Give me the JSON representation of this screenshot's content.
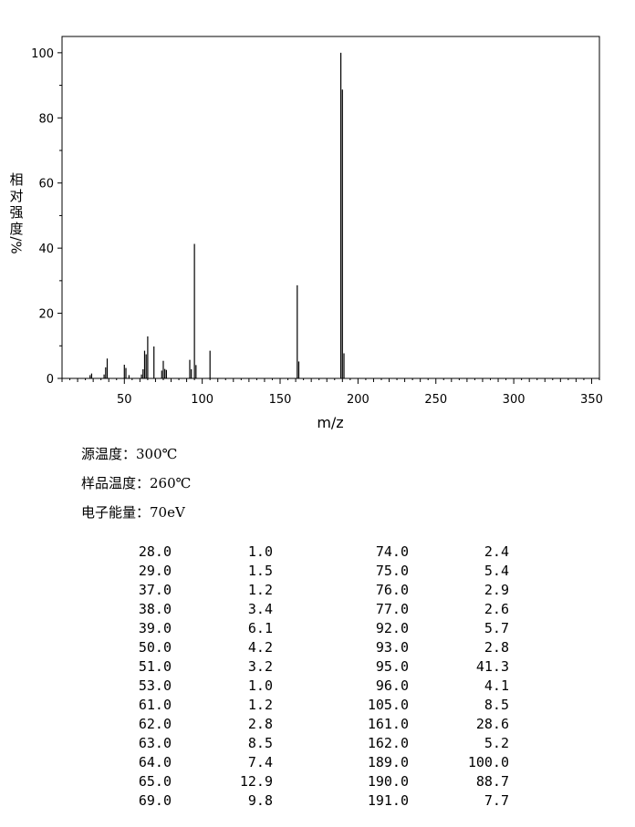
{
  "chart_data": {
    "type": "bar",
    "xlabel": "m/z",
    "ylabel": "相对强度/%",
    "xlim": [
      10,
      355
    ],
    "ylim": [
      0,
      105
    ],
    "x_ticks": [
      50,
      100,
      150,
      200,
      250,
      300,
      350
    ],
    "y_ticks": [
      0,
      20,
      40,
      60,
      80,
      100
    ],
    "grid": false,
    "x": [
      28,
      29,
      37,
      38,
      39,
      50,
      51,
      53,
      61,
      62,
      63,
      64,
      65,
      69,
      74,
      75,
      76,
      77,
      92,
      93,
      95,
      96,
      105,
      161,
      162,
      189,
      190,
      191
    ],
    "values": [
      1.0,
      1.5,
      1.2,
      3.4,
      6.1,
      4.2,
      3.2,
      1.0,
      1.2,
      2.8,
      8.5,
      7.4,
      12.9,
      9.8,
      2.4,
      5.4,
      2.9,
      2.6,
      5.7,
      2.8,
      41.3,
      4.1,
      8.5,
      28.6,
      5.2,
      100.0,
      88.7,
      7.7
    ]
  },
  "conditions": {
    "source_temp": "源温度：300℃",
    "sample_temp": "样品温度：260℃",
    "electron_energy": "电子能量：70eV"
  },
  "peak_table": [
    [
      "28.0",
      "1.0",
      "74.0",
      "2.4"
    ],
    [
      "29.0",
      "1.5",
      "75.0",
      "5.4"
    ],
    [
      "37.0",
      "1.2",
      "76.0",
      "2.9"
    ],
    [
      "38.0",
      "3.4",
      "77.0",
      "2.6"
    ],
    [
      "39.0",
      "6.1",
      "92.0",
      "5.7"
    ],
    [
      "50.0",
      "4.2",
      "93.0",
      "2.8"
    ],
    [
      "51.0",
      "3.2",
      "95.0",
      "41.3"
    ],
    [
      "53.0",
      "1.0",
      "96.0",
      "4.1"
    ],
    [
      "61.0",
      "1.2",
      "105.0",
      "8.5"
    ],
    [
      "62.0",
      "2.8",
      "161.0",
      "28.6"
    ],
    [
      "63.0",
      "8.5",
      "162.0",
      "5.2"
    ],
    [
      "64.0",
      "7.4",
      "189.0",
      "100.0"
    ],
    [
      "65.0",
      "12.9",
      "190.0",
      "88.7"
    ],
    [
      "69.0",
      "9.8",
      "191.0",
      "7.7"
    ]
  ]
}
